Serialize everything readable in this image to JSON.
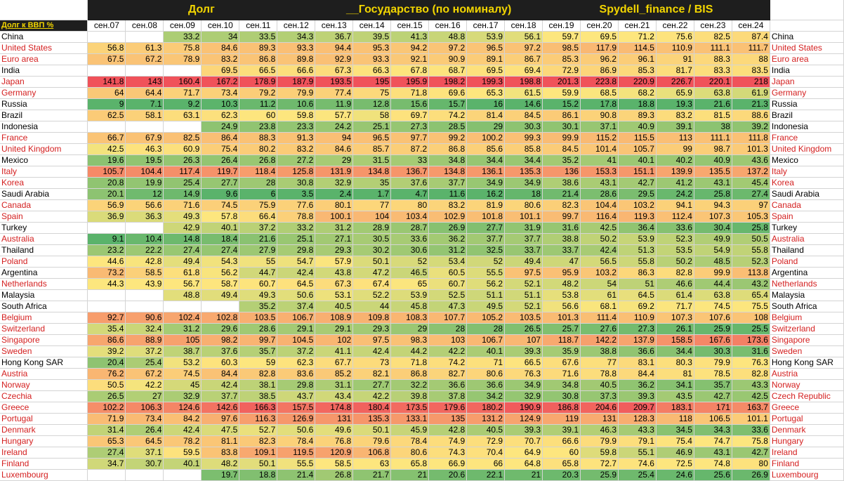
{
  "titles": {
    "t1": "Долг",
    "t2": "__Государство (по номиналу)",
    "t3": "Spydell_finance / BIS"
  },
  "corner_label": "Долг к ВВП %",
  "years": [
    "сен.07",
    "сен.08",
    "сен.09",
    "сен.10",
    "сен.11",
    "сен.12",
    "сен.13",
    "сен.14",
    "сен.15",
    "сен.16",
    "сен.17",
    "сен.18",
    "сен.19",
    "сен.20",
    "сен.21",
    "сен.22",
    "сен.23",
    "сен.24"
  ],
  "rows": [
    {
      "name": "China",
      "right_name": "China",
      "red": false,
      "values": [
        null,
        null,
        33.2,
        34,
        33.5,
        34.3,
        36.7,
        39.5,
        41.3,
        48.8,
        53.9,
        56.1,
        59.7,
        69.5,
        71.2,
        75.6,
        82.5,
        87.4
      ]
    },
    {
      "name": "United States",
      "right_name": "United States",
      "red": true,
      "values": [
        56.8,
        61.3,
        75.8,
        84.6,
        89.3,
        93.3,
        94.4,
        95.3,
        94.2,
        97.2,
        96.5,
        97.2,
        98.5,
        117.9,
        114.5,
        110.9,
        111.1,
        111.7
      ]
    },
    {
      "name": "Euro area",
      "right_name": "Euro area",
      "red": true,
      "values": [
        67.5,
        67.2,
        78.9,
        83.2,
        86.8,
        89.8,
        92.9,
        93.3,
        92.1,
        90.9,
        89.1,
        86.7,
        85.3,
        96.2,
        96.1,
        91,
        88.3,
        88
      ]
    },
    {
      "name": "India",
      "right_name": "India",
      "red": false,
      "values": [
        null,
        null,
        null,
        69.5,
        66.5,
        66.6,
        67.3,
        66.3,
        67.8,
        68.7,
        69.5,
        69.4,
        72.9,
        86.9,
        85.3,
        81.7,
        83.3,
        83.5
      ]
    },
    {
      "name": "Japan",
      "right_name": "Japan",
      "red": true,
      "values": [
        141.8,
        143,
        160.4,
        167.2,
        178.9,
        187.9,
        193.5,
        195,
        195.9,
        198.2,
        199.3,
        198.8,
        201.3,
        223.8,
        220.9,
        226.7,
        220.1,
        218
      ]
    },
    {
      "name": "Germany",
      "right_name": "Germany",
      "red": true,
      "values": [
        64,
        64.4,
        71.7,
        73.4,
        79.2,
        79.9,
        77.4,
        75,
        71.8,
        69.6,
        65.3,
        61.5,
        59.9,
        68.5,
        68.2,
        65.9,
        63.8,
        61.9
      ]
    },
    {
      "name": "Russia",
      "right_name": "Russia",
      "red": false,
      "values": [
        9,
        7.1,
        9.2,
        10.3,
        11.2,
        10.6,
        11.9,
        12.8,
        15.6,
        15.7,
        16,
        14.6,
        15.2,
        17.8,
        18.8,
        19.3,
        21.6,
        21.3
      ]
    },
    {
      "name": "Brazil",
      "right_name": "Brazil",
      "red": false,
      "values": [
        62.5,
        58.1,
        63.1,
        62.3,
        60,
        59.8,
        57.7,
        58,
        69.7,
        74.2,
        81.4,
        84.5,
        86.1,
        90.8,
        89.3,
        83.2,
        81.5,
        88.6
      ]
    },
    {
      "name": "Indonesia",
      "right_name": "Indonesia",
      "red": false,
      "values": [
        null,
        null,
        null,
        24.9,
        23.8,
        23.3,
        24.2,
        25.1,
        27.3,
        28.5,
        29,
        30.3,
        30.1,
        37.1,
        40.9,
        39.1,
        38,
        39.2
      ]
    },
    {
      "name": "France",
      "right_name": "France",
      "red": true,
      "values": [
        66.7,
        67.9,
        82.5,
        86.4,
        88.3,
        91.3,
        94,
        96.5,
        97.7,
        99.2,
        100.2,
        99.3,
        99.9,
        115.2,
        115.5,
        113,
        111.1,
        111.8
      ]
    },
    {
      "name": "United Kingdom",
      "right_name": "United Kingdom",
      "red": true,
      "values": [
        42.5,
        46.3,
        60.9,
        75.4,
        80.2,
        83.2,
        84.6,
        85.7,
        87.2,
        86.8,
        85.6,
        85.8,
        84.5,
        101.4,
        105.7,
        99,
        98.7,
        101.3
      ]
    },
    {
      "name": "Mexico",
      "right_name": "Mexico",
      "red": false,
      "values": [
        19.6,
        19.5,
        26.3,
        26.4,
        26.8,
        27.2,
        29,
        31.5,
        33,
        34.8,
        34.4,
        34.4,
        35.2,
        41,
        40.1,
        40.2,
        40.9,
        43.6
      ]
    },
    {
      "name": "Italy",
      "right_name": "Italy",
      "red": true,
      "values": [
        105.7,
        104.4,
        117.4,
        119.7,
        118.4,
        125.8,
        131.9,
        134.8,
        136.7,
        134.8,
        136.1,
        135.3,
        136,
        153.3,
        151.1,
        139.9,
        135.5,
        137.2
      ]
    },
    {
      "name": "Korea",
      "right_name": "Korea",
      "red": true,
      "values": [
        20.8,
        19.9,
        25.4,
        27.7,
        28,
        30.8,
        32.9,
        35,
        37.6,
        37.7,
        34.9,
        34.9,
        38.6,
        43.1,
        42.7,
        41.2,
        43.1,
        45.4
      ]
    },
    {
      "name": "Saudi Arabia",
      "right_name": "Saudi Arabia",
      "red": false,
      "values": [
        20.1,
        12,
        14.9,
        9.6,
        6,
        3.5,
        2.4,
        1.7,
        4.7,
        11.6,
        16.2,
        18,
        21.4,
        28.6,
        29.5,
        24.2,
        25.8,
        27.4
      ]
    },
    {
      "name": "Canada",
      "right_name": "Canada",
      "red": true,
      "values": [
        56.9,
        56.6,
        71.6,
        74.5,
        75.9,
        77.6,
        80.1,
        77,
        80,
        83.2,
        81.9,
        80.6,
        82.3,
        104.4,
        103.2,
        94.1,
        94.3,
        97
      ]
    },
    {
      "name": "Spain",
      "right_name": "Spain",
      "red": true,
      "values": [
        36.9,
        36.3,
        49.3,
        57.8,
        66.4,
        78.8,
        100.1,
        104,
        103.4,
        102.9,
        101.8,
        101.1,
        99.7,
        116.4,
        119.3,
        112.4,
        107.3,
        105.3
      ]
    },
    {
      "name": "Turkey",
      "right_name": "Turkey",
      "red": false,
      "values": [
        null,
        null,
        42.9,
        40.1,
        37.2,
        33.2,
        31.2,
        28.9,
        28.7,
        26.9,
        27.7,
        31.9,
        31.6,
        42.5,
        36.4,
        33.6,
        30.4,
        25.8
      ]
    },
    {
      "name": "Australia",
      "right_name": "Australia",
      "red": true,
      "values": [
        9.1,
        10.4,
        14.8,
        18.4,
        21.6,
        25.1,
        27.1,
        30.5,
        33.6,
        36.2,
        37.7,
        37.7,
        38.8,
        50.2,
        53.9,
        52.3,
        49.9,
        50.5
      ]
    },
    {
      "name": "Thailand",
      "right_name": "Thailand",
      "red": false,
      "values": [
        23.2,
        22.2,
        27.4,
        27.4,
        27.9,
        29.8,
        29.3,
        30.2,
        30.6,
        31.2,
        32.5,
        33.7,
        33.7,
        42.4,
        51.3,
        53.5,
        54.9,
        55.8
      ]
    },
    {
      "name": "Poland",
      "right_name": "Poland",
      "red": true,
      "values": [
        44.6,
        42.8,
        49.4,
        54.3,
        55,
        54.7,
        57.9,
        50.1,
        52,
        53.4,
        52,
        49.4,
        47,
        56.5,
        55.8,
        50.2,
        48.5,
        52.3
      ]
    },
    {
      "name": "Argentina",
      "right_name": "Argentina",
      "red": false,
      "values": [
        73.2,
        58.5,
        61.8,
        56.2,
        44.7,
        42.4,
        43.8,
        47.2,
        46.5,
        60.5,
        55.5,
        97.5,
        95.9,
        103.2,
        86.3,
        82.8,
        99.9,
        113.8
      ]
    },
    {
      "name": "Netherlands",
      "right_name": "Netherlands",
      "red": true,
      "values": [
        44.3,
        43.9,
        56.7,
        58.7,
        60.7,
        64.5,
        67.3,
        67.4,
        65,
        60.7,
        56.2,
        52.1,
        48.2,
        54,
        51,
        46.6,
        44.4,
        43.2
      ]
    },
    {
      "name": "Malaysia",
      "right_name": "Malaysia",
      "red": false,
      "values": [
        null,
        null,
        48.8,
        49.4,
        49.3,
        50.6,
        53.1,
        52.2,
        53.9,
        52.5,
        51.1,
        51.1,
        53.8,
        61,
        64.5,
        61.4,
        63.8,
        65.4
      ]
    },
    {
      "name": "South Africa",
      "right_name": "South Africa",
      "red": false,
      "values": [
        null,
        null,
        null,
        null,
        35.2,
        37.4,
        40.5,
        44,
        45.8,
        47.3,
        49.5,
        52.1,
        56.6,
        68.1,
        69.2,
        71.7,
        74.5,
        75.5
      ]
    },
    {
      "name": "Belgium",
      "right_name": "Belgium",
      "red": true,
      "values": [
        92.7,
        90.6,
        102.4,
        102.8,
        103.5,
        106.7,
        108.9,
        109.8,
        108.3,
        107.7,
        105.2,
        103.5,
        101.3,
        111.4,
        110.9,
        107.3,
        107.6,
        108
      ]
    },
    {
      "name": "Switzerland",
      "right_name": "Switzerland",
      "red": true,
      "values": [
        35.4,
        32.4,
        31.2,
        29.6,
        28.6,
        29.1,
        29.1,
        29.3,
        29,
        28,
        28,
        26.5,
        25.7,
        27.6,
        27.3,
        26.1,
        25.9,
        25.5
      ]
    },
    {
      "name": "Singapore",
      "right_name": "Singapore",
      "red": true,
      "values": [
        86.6,
        88.9,
        105,
        98.2,
        99.7,
        104.5,
        102,
        97.5,
        98.3,
        103,
        106.7,
        107,
        118.7,
        142.2,
        137.9,
        158.5,
        167.6,
        173.6
      ]
    },
    {
      "name": "Sweden",
      "right_name": "Sweden",
      "red": true,
      "values": [
        39.2,
        37.2,
        38.7,
        37.6,
        35.7,
        37.2,
        41.1,
        42.4,
        44.2,
        42.2,
        40.1,
        39.3,
        35.9,
        38.8,
        36.6,
        34.4,
        30.3,
        31.6
      ]
    },
    {
      "name": "Hong Kong SAR",
      "right_name": "Hong Kong SAR",
      "red": false,
      "values": [
        20.4,
        25.4,
        53.2,
        60.3,
        59,
        62.3,
        67.7,
        73,
        71.8,
        74.2,
        71,
        66.5,
        67.6,
        77,
        83.1,
        80.3,
        79.9,
        76.3
      ]
    },
    {
      "name": "Austria",
      "right_name": "Austria",
      "red": true,
      "values": [
        76.2,
        67.2,
        74.5,
        84.4,
        82.8,
        83.6,
        85.2,
        82.1,
        86.8,
        82.7,
        80.6,
        76.3,
        71.6,
        78.8,
        84.4,
        81,
        78.5,
        82.8
      ]
    },
    {
      "name": "Norway",
      "right_name": "Norway",
      "red": true,
      "values": [
        50.5,
        42.2,
        45,
        42.4,
        38.1,
        29.8,
        31.1,
        27.7,
        32.2,
        36.6,
        36.6,
        34.9,
        34.8,
        40.5,
        36.2,
        34.1,
        35.7,
        43.3
      ]
    },
    {
      "name": "Czechia",
      "right_name": "Czech Republic",
      "red": true,
      "values": [
        26.5,
        27,
        32.9,
        37.7,
        38.5,
        43.7,
        43.4,
        42.2,
        39.8,
        37.8,
        34.2,
        32.9,
        30.8,
        37.3,
        39.3,
        43.5,
        42.7,
        42.5
      ]
    },
    {
      "name": "Greece",
      "right_name": "Greece",
      "red": true,
      "values": [
        102.2,
        106.3,
        124.6,
        142.6,
        166.3,
        157.5,
        174.8,
        180.4,
        173.5,
        179.6,
        180.2,
        190.9,
        186.8,
        204.6,
        209.7,
        183.1,
        171,
        163.7
      ]
    },
    {
      "name": "Portugal",
      "right_name": "Portugal",
      "red": true,
      "values": [
        71.9,
        73.4,
        84.2,
        97.6,
        116.3,
        126.9,
        131,
        135.3,
        133.1,
        135,
        131.2,
        124.9,
        119,
        131,
        128.3,
        118,
        106.5,
        101.1
      ]
    },
    {
      "name": "Denmark",
      "right_name": "Denmark",
      "red": true,
      "values": [
        31.4,
        26.4,
        42.4,
        47.5,
        52.7,
        50.6,
        49.6,
        50.1,
        45.9,
        42.8,
        40.5,
        39.3,
        39.1,
        46.3,
        43.3,
        34.5,
        34.3,
        33.6
      ]
    },
    {
      "name": "Hungary",
      "right_name": "Hungary",
      "red": true,
      "values": [
        65.3,
        64.5,
        78.2,
        81.1,
        82.3,
        78.4,
        76.8,
        79.6,
        78.4,
        74.9,
        72.9,
        70.7,
        66.6,
        79.9,
        79.1,
        75.4,
        74.7,
        75.8
      ]
    },
    {
      "name": "Ireland",
      "right_name": "Ireland",
      "red": true,
      "values": [
        27.4,
        37.1,
        59.5,
        83.8,
        109.1,
        119.5,
        120.9,
        106.8,
        80.6,
        74.3,
        70.4,
        64.9,
        60,
        59.8,
        55.1,
        46.9,
        43.1,
        42.7
      ]
    },
    {
      "name": "Finland",
      "right_name": "Finland",
      "red": true,
      "values": [
        34.7,
        30.7,
        40.1,
        48.2,
        50.1,
        55.5,
        58.5,
        63,
        65.8,
        66.9,
        66,
        64.8,
        65.8,
        72.7,
        74.6,
        72.5,
        74.8,
        80
      ]
    },
    {
      "name": "Luxembourg",
      "right_name": "Luxembourg",
      "red": true,
      "values": [
        null,
        null,
        null,
        19.7,
        18.8,
        21.4,
        26.8,
        21.7,
        21,
        20.6,
        22.1,
        21,
        20.3,
        25.9,
        25.4,
        24.6,
        25.6,
        26.9
      ]
    }
  ],
  "colors": {
    "low": "#5ab36b",
    "mid": "#fde67e",
    "high": "#f0525a",
    "title_bg": "#1e1e1e",
    "title_fg": "#f2d500",
    "country_red": "#d42020"
  }
}
